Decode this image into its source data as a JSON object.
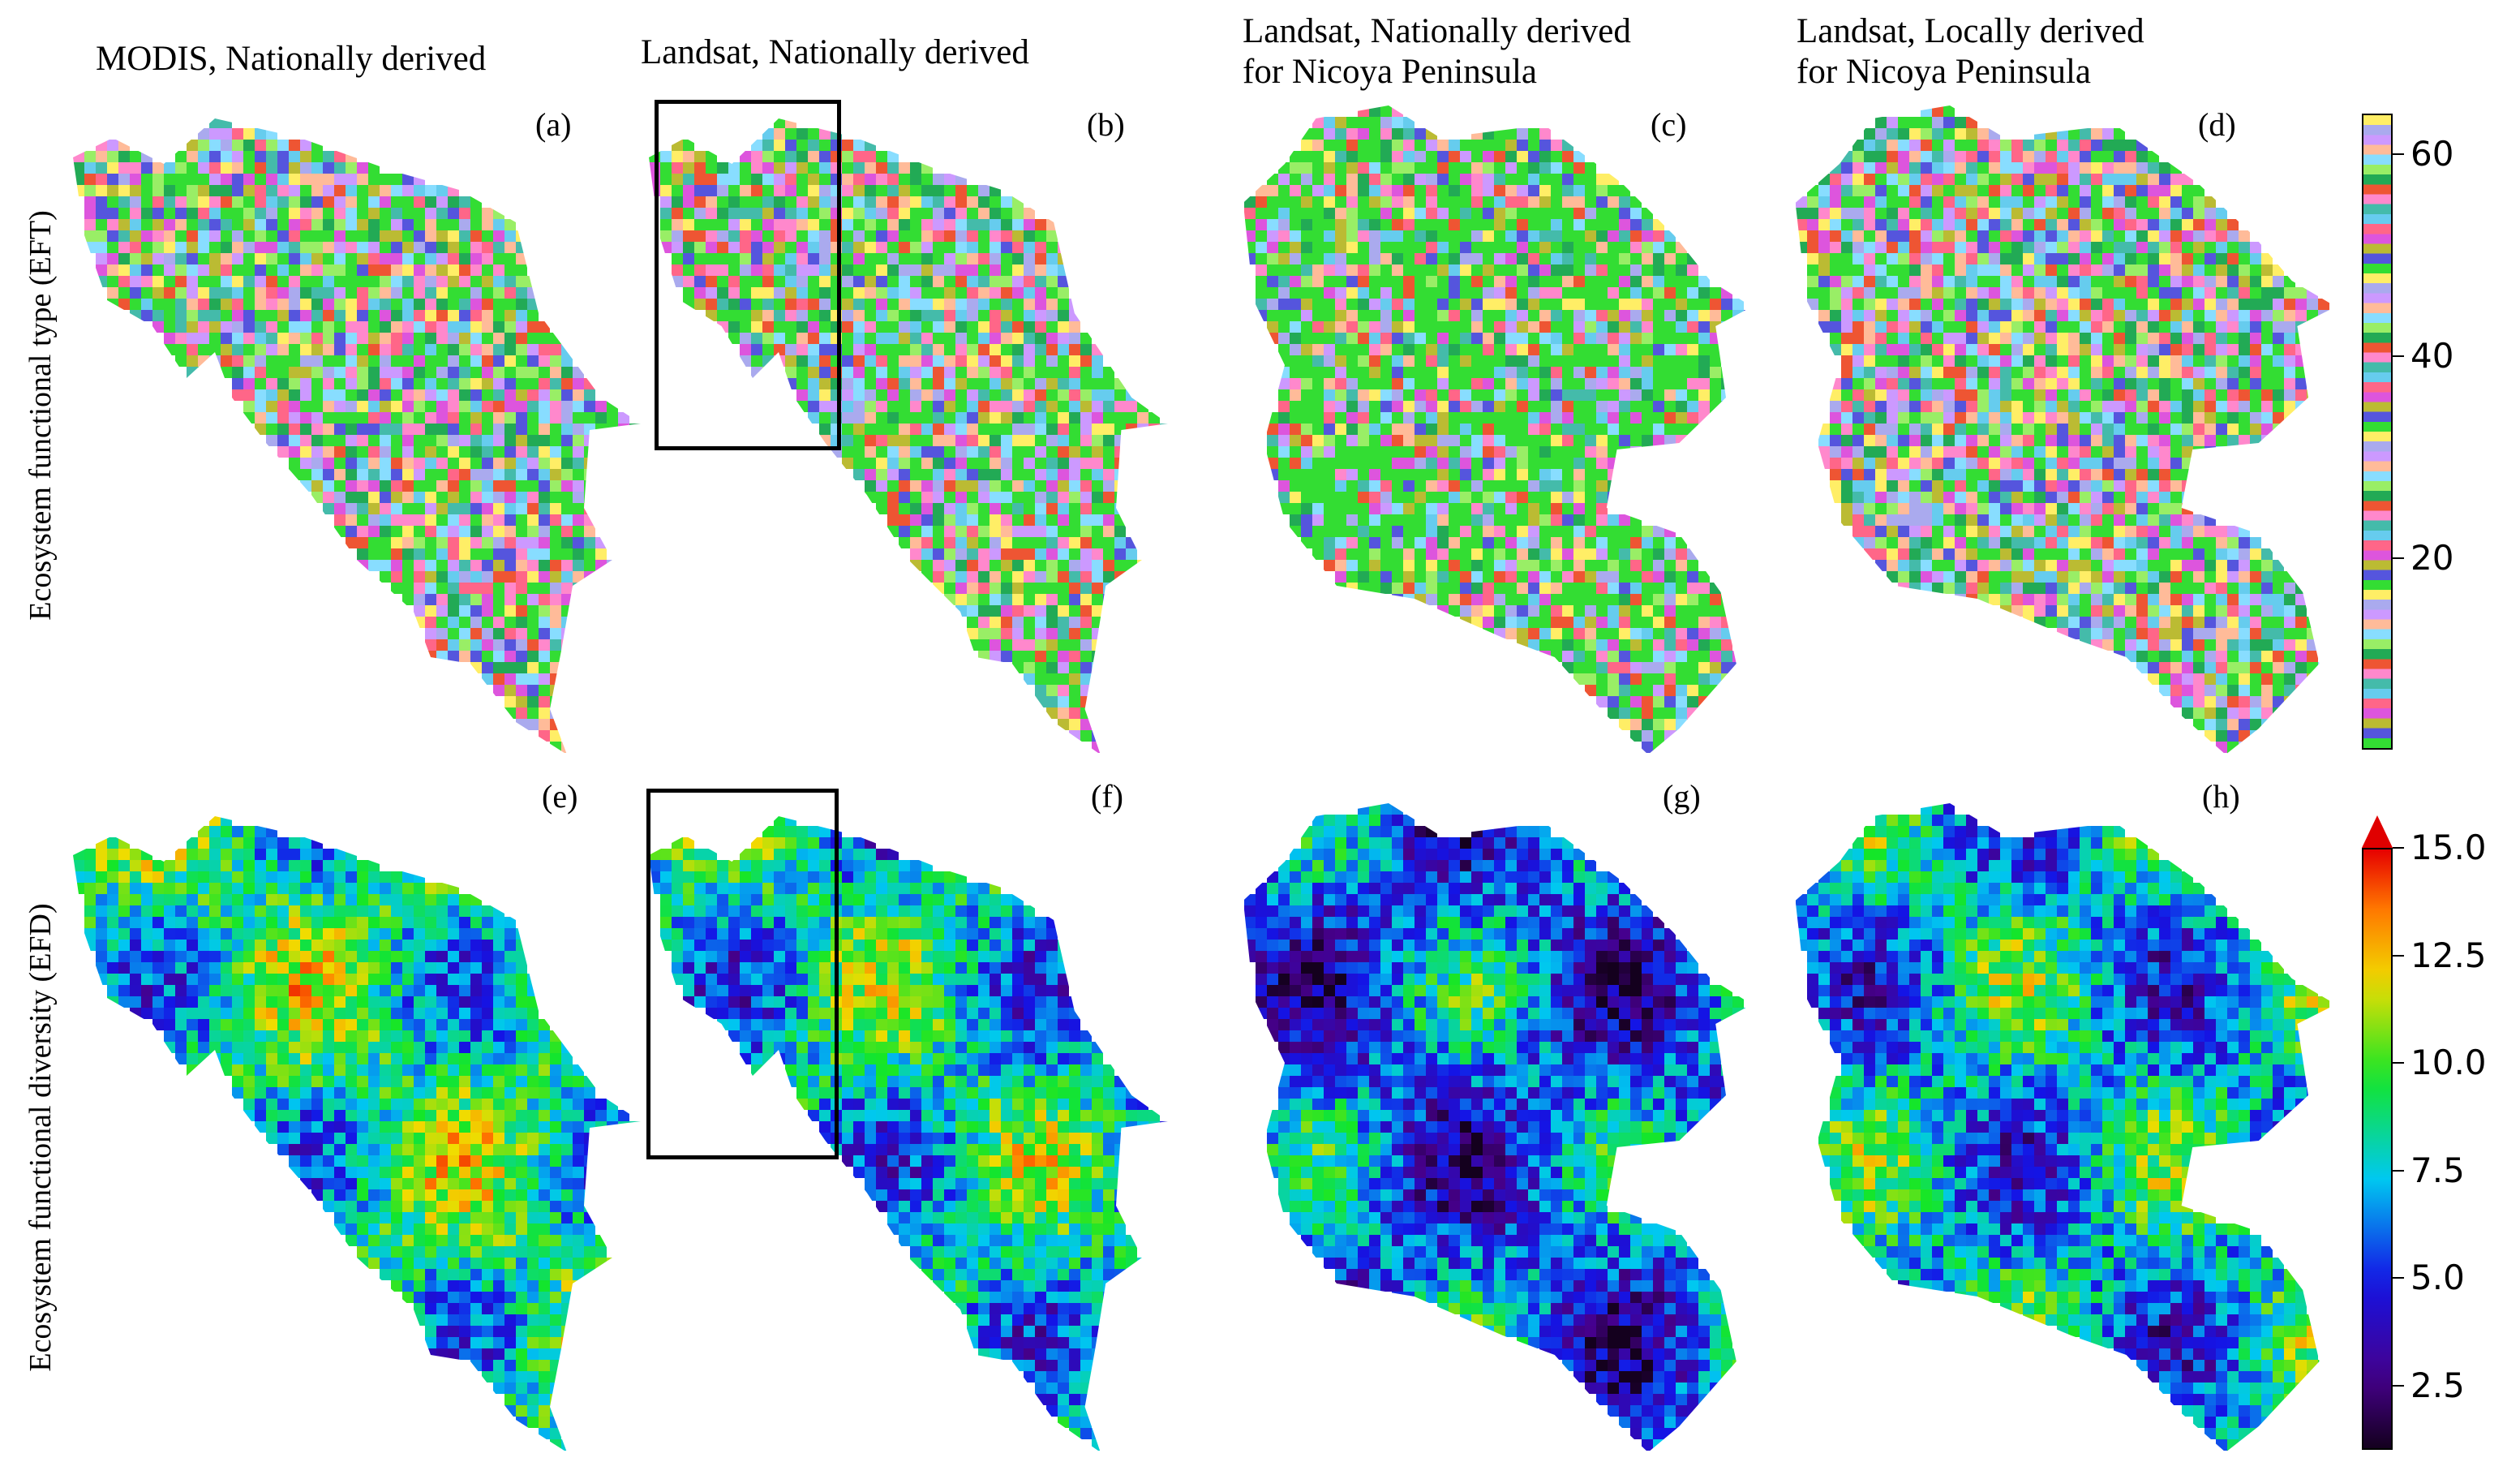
{
  "columns": [
    {
      "title": "MODIS, Nationally derived"
    },
    {
      "title": "Landsat,  Nationally derived"
    },
    {
      "title": "Landsat,  Nationally derived\nfor Nicoya Peninsula"
    },
    {
      "title": "Landsat,  Locally derived\nfor Nicoya Peninsula"
    }
  ],
  "rows": [
    {
      "label": "Ecosystem functional type (EFT)"
    },
    {
      "label": "Ecosystem functional diversity (EFD)"
    }
  ],
  "panel_labels": [
    "(a)",
    "(b)",
    "(c)",
    "(d)",
    "(e)",
    "(f)",
    "(g)",
    "(h)"
  ],
  "colorbars": {
    "eft": {
      "ticks": [
        "60",
        "40",
        "20"
      ],
      "tick_values": [
        60,
        40,
        20
      ],
      "min": 1,
      "max": 64
    },
    "efd": {
      "ticks": [
        "15.0",
        "12.5",
        "10.0",
        "7.5",
        "5.0",
        "2.5"
      ],
      "tick_values": [
        15.0,
        12.5,
        10.0,
        7.5,
        5.0,
        2.5
      ],
      "min": 1.0,
      "max": 15.0,
      "extend": "max"
    }
  }
}
